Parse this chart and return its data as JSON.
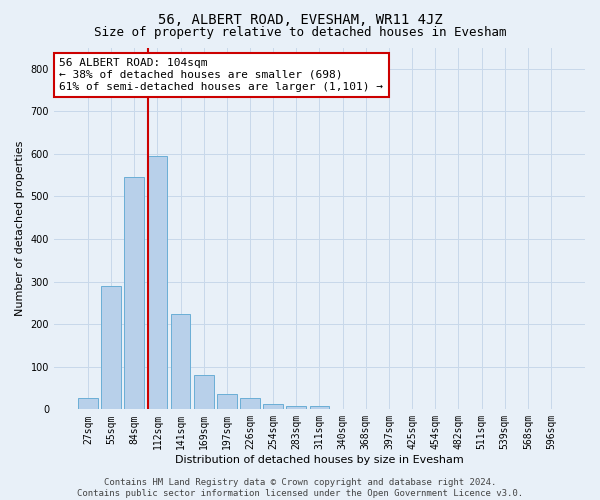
{
  "title": "56, ALBERT ROAD, EVESHAM, WR11 4JZ",
  "subtitle": "Size of property relative to detached houses in Evesham",
  "xlabel": "Distribution of detached houses by size in Evesham",
  "ylabel": "Number of detached properties",
  "categories": [
    "27sqm",
    "55sqm",
    "84sqm",
    "112sqm",
    "141sqm",
    "169sqm",
    "197sqm",
    "226sqm",
    "254sqm",
    "283sqm",
    "311sqm",
    "340sqm",
    "368sqm",
    "397sqm",
    "425sqm",
    "454sqm",
    "482sqm",
    "511sqm",
    "539sqm",
    "568sqm",
    "596sqm"
  ],
  "values": [
    27,
    290,
    545,
    595,
    225,
    80,
    37,
    27,
    12,
    9,
    8,
    0,
    0,
    0,
    0,
    0,
    0,
    0,
    0,
    0,
    0
  ],
  "bar_color": "#b8d0ea",
  "bar_edge_color": "#6aaed6",
  "grid_color": "#c8d8ea",
  "background_color": "#e8f0f8",
  "vline_color": "#cc0000",
  "annotation_text": "56 ALBERT ROAD: 104sqm\n← 38% of detached houses are smaller (698)\n61% of semi-detached houses are larger (1,101) →",
  "annotation_box_facecolor": "white",
  "annotation_box_edgecolor": "#cc0000",
  "ylim": [
    0,
    850
  ],
  "yticks": [
    0,
    100,
    200,
    300,
    400,
    500,
    600,
    700,
    800
  ],
  "footer": "Contains HM Land Registry data © Crown copyright and database right 2024.\nContains public sector information licensed under the Open Government Licence v3.0.",
  "title_fontsize": 10,
  "subtitle_fontsize": 9,
  "axis_label_fontsize": 8,
  "tick_fontsize": 7,
  "annotation_fontsize": 8,
  "footer_fontsize": 6.5
}
